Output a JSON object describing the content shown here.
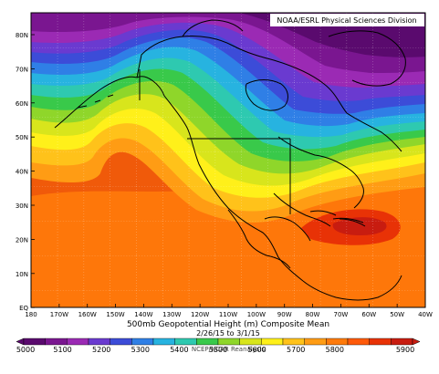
{
  "credit": "NOAA/ESRL Physical Sciences Division",
  "title": "500mb Geopotential Height (m) Composite Mean",
  "date_range": "2/26/15 to 3/1/15",
  "footer": "NCEP/NCAR Reanalysis",
  "lat_labels": [
    "80N",
    "70N",
    "60N",
    "50N",
    "40N",
    "30N",
    "20N",
    "10N",
    "EQ"
  ],
  "lon_labels": [
    "180",
    "170W",
    "160W",
    "150W",
    "140W",
    "130W",
    "120W",
    "110W",
    "100W",
    "90W",
    "80W",
    "70W",
    "60W",
    "50W",
    "40W"
  ],
  "colorbar": {
    "labels": [
      "5000",
      "5100",
      "5200",
      "5300",
      "5400",
      "5500",
      "5600",
      "5700",
      "5800",
      "5900"
    ],
    "colors": [
      "#5a0a6e",
      "#7a1690",
      "#9b2ab4",
      "#6a3ad0",
      "#3c4cd8",
      "#2f7fe6",
      "#27b3e0",
      "#2ec9b0",
      "#39c94a",
      "#8fd62a",
      "#d8e51c",
      "#fff01a",
      "#ffc21a",
      "#ff9c14",
      "#ff7a0a",
      "#ff5a0a",
      "#e83206",
      "#c81c10"
    ]
  }
}
